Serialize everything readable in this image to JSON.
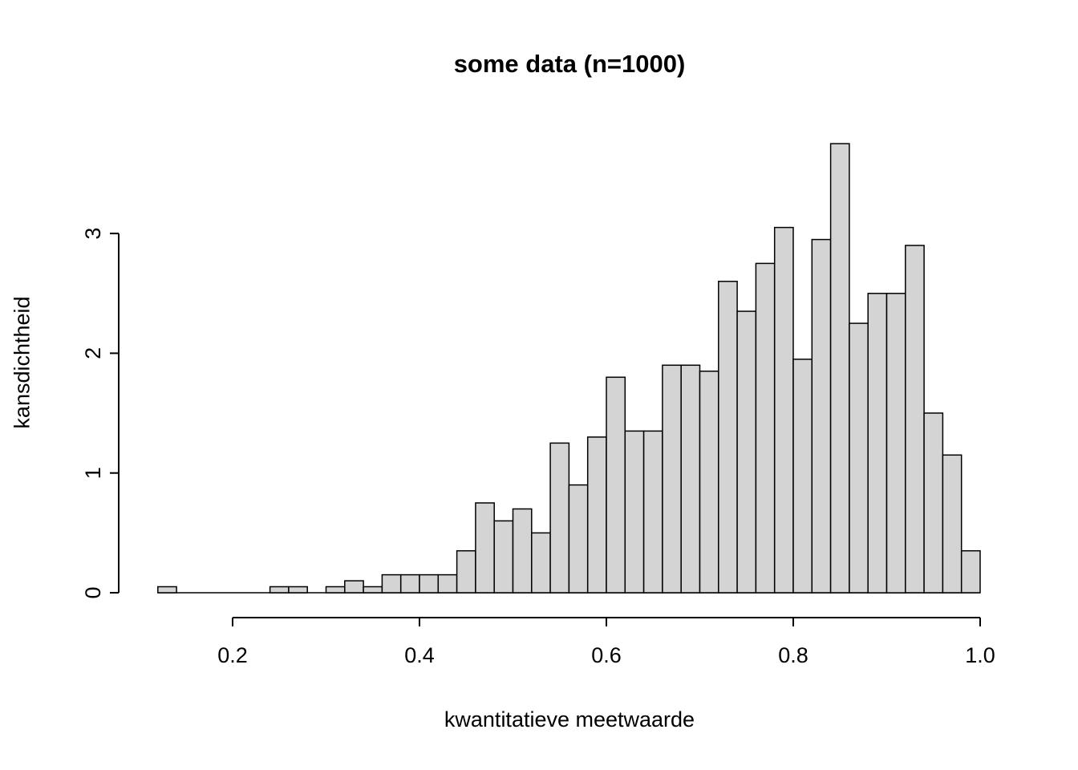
{
  "chart_data": {
    "type": "bar",
    "subtype": "histogram",
    "title": "some data (n=1000)",
    "xlabel": "kwantitatieve meetwaarde",
    "ylabel": "kansdichtheid",
    "bin_start": 0.12,
    "bin_width": 0.02,
    "values": [
      0.05,
      0,
      0,
      0,
      0,
      0,
      0.05,
      0.05,
      0,
      0.05,
      0.1,
      0.05,
      0.15,
      0.15,
      0.15,
      0.15,
      0.35,
      0.75,
      0.6,
      0.7,
      0.5,
      1.25,
      0.9,
      1.3,
      1.8,
      1.35,
      1.35,
      1.9,
      1.9,
      1.85,
      2.6,
      2.35,
      2.75,
      3.05,
      1.95,
      2.95,
      3.75,
      2.25,
      2.5,
      2.5,
      2.9,
      1.5,
      1.15,
      0.35
    ],
    "x_ticks": [
      0.2,
      0.4,
      0.6,
      0.8,
      1.0
    ],
    "x_tick_labels": [
      "0.2",
      "0.4",
      "0.6",
      "0.8",
      "1.0"
    ],
    "y_ticks": [
      0,
      1,
      2,
      3
    ],
    "y_tick_labels": [
      "0",
      "1",
      "2",
      "3"
    ],
    "xlim": [
      0.12,
      1.0
    ],
    "ylim": [
      0,
      3.75
    ],
    "grid": false,
    "legend": "none",
    "bar_fill": "#d4d4d4",
    "bar_stroke": "#000000",
    "axis_color": "#000000",
    "background": "#ffffff"
  }
}
